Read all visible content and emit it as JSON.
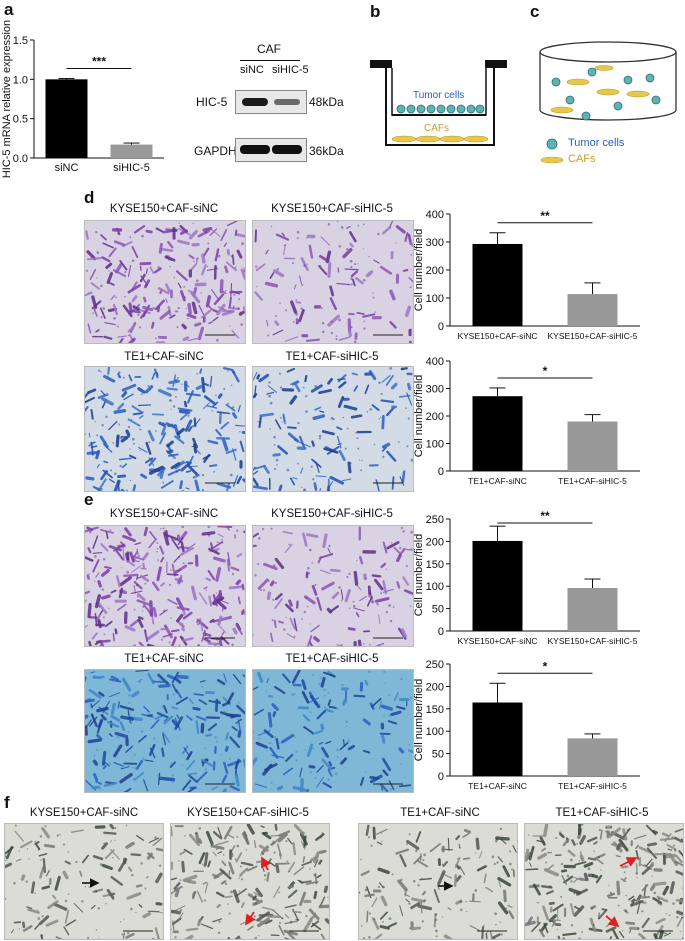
{
  "panel_letters": {
    "a": "a",
    "b": "b",
    "c": "c",
    "d": "d",
    "e": "e",
    "f": "f"
  },
  "colors": {
    "black_bar": "#000000",
    "grey_bar": "#999999",
    "purple": "#7a3fa8",
    "blue": "#1f4fb0",
    "teal": "#4aa8c8"
  },
  "panel_a": {
    "ylabel": "HIC-5 mRNA relative expression",
    "significance": "***",
    "blot": {
      "group": "CAF",
      "lanes": [
        "siNC",
        "siHIC-5"
      ],
      "rows": [
        {
          "name": "HIC-5",
          "size": "48kDa"
        },
        {
          "name": "GAPDH",
          "size": "36kDa"
        }
      ]
    }
  },
  "panel_b": {
    "top_label": "Tumor cells",
    "bottom_label": "CAFs"
  },
  "panel_c": {
    "legend": [
      "Tumor cells",
      "CAFs"
    ]
  },
  "photo_titles": {
    "d_row1": [
      "KYSE150+CAF-siNC",
      "KYSE150+CAF-siHIC-5"
    ],
    "d_row2": [
      "TE1+CAF-siNC",
      "TE1+CAF-siHIC-5"
    ],
    "e_row1": [
      "KYSE150+CAF-siNC",
      "KYSE150+CAF-siHIC-5"
    ],
    "e_row2": [
      "TE1+CAF-siNC",
      "TE1+CAF-siHIC-5"
    ],
    "f_row": [
      "KYSE150+CAF-siNC",
      "KYSE150+CAF-siHIC-5",
      "TE1+CAF-siNC",
      "TE1+CAF-siHIC-5"
    ]
  },
  "chart_data": [
    {
      "id": "a",
      "type": "bar",
      "categories": [
        "siNC",
        "siHIC-5"
      ],
      "values": [
        1.0,
        0.17
      ],
      "errors": [
        0.01,
        0.02
      ],
      "ylim": [
        0,
        1.5
      ],
      "yticks": [
        "0.0",
        "0.5",
        "1.0",
        "1.5"
      ],
      "ylabel": "HIC-5 mRNA relative expression",
      "significance": "***"
    },
    {
      "id": "d1",
      "type": "bar",
      "categories": [
        "KYSE150+CAF-siNC",
        "KYSE150+CAF-siHIC-5"
      ],
      "values": [
        293,
        114
      ],
      "errors": [
        40,
        40
      ],
      "ylim": [
        0,
        400
      ],
      "yticks": [
        "0",
        "100",
        "200",
        "300",
        "400"
      ],
      "ylabel": "Cell number/field",
      "significance": "**"
    },
    {
      "id": "d2",
      "type": "bar",
      "categories": [
        "TE1+CAF-siNC",
        "TE1+CAF-siHIC-5"
      ],
      "values": [
        272,
        180
      ],
      "errors": [
        30,
        25
      ],
      "ylim": [
        0,
        400
      ],
      "yticks": [
        "0",
        "100",
        "200",
        "300",
        "400"
      ],
      "ylabel": "Cell number/field",
      "significance": "*"
    },
    {
      "id": "e1",
      "type": "bar",
      "categories": [
        "KYSE150+CAF-siNC",
        "KYSE150+CAF-siHIC-5"
      ],
      "values": [
        201,
        96
      ],
      "errors": [
        33,
        20
      ],
      "ylim": [
        0,
        250
      ],
      "yticks": [
        "0",
        "50",
        "100",
        "150",
        "200",
        "250"
      ],
      "ylabel": "Cell number/field",
      "significance": "**"
    },
    {
      "id": "e2",
      "type": "bar",
      "categories": [
        "TE1+CAF-siNC",
        "TE1+CAF-siHIC-5"
      ],
      "values": [
        164,
        84
      ],
      "errors": [
        43,
        10
      ],
      "ylim": [
        0,
        250
      ],
      "yticks": [
        "0",
        "50",
        "100",
        "150",
        "200",
        "250"
      ],
      "ylabel": "Cell number/field",
      "significance": "*"
    }
  ]
}
